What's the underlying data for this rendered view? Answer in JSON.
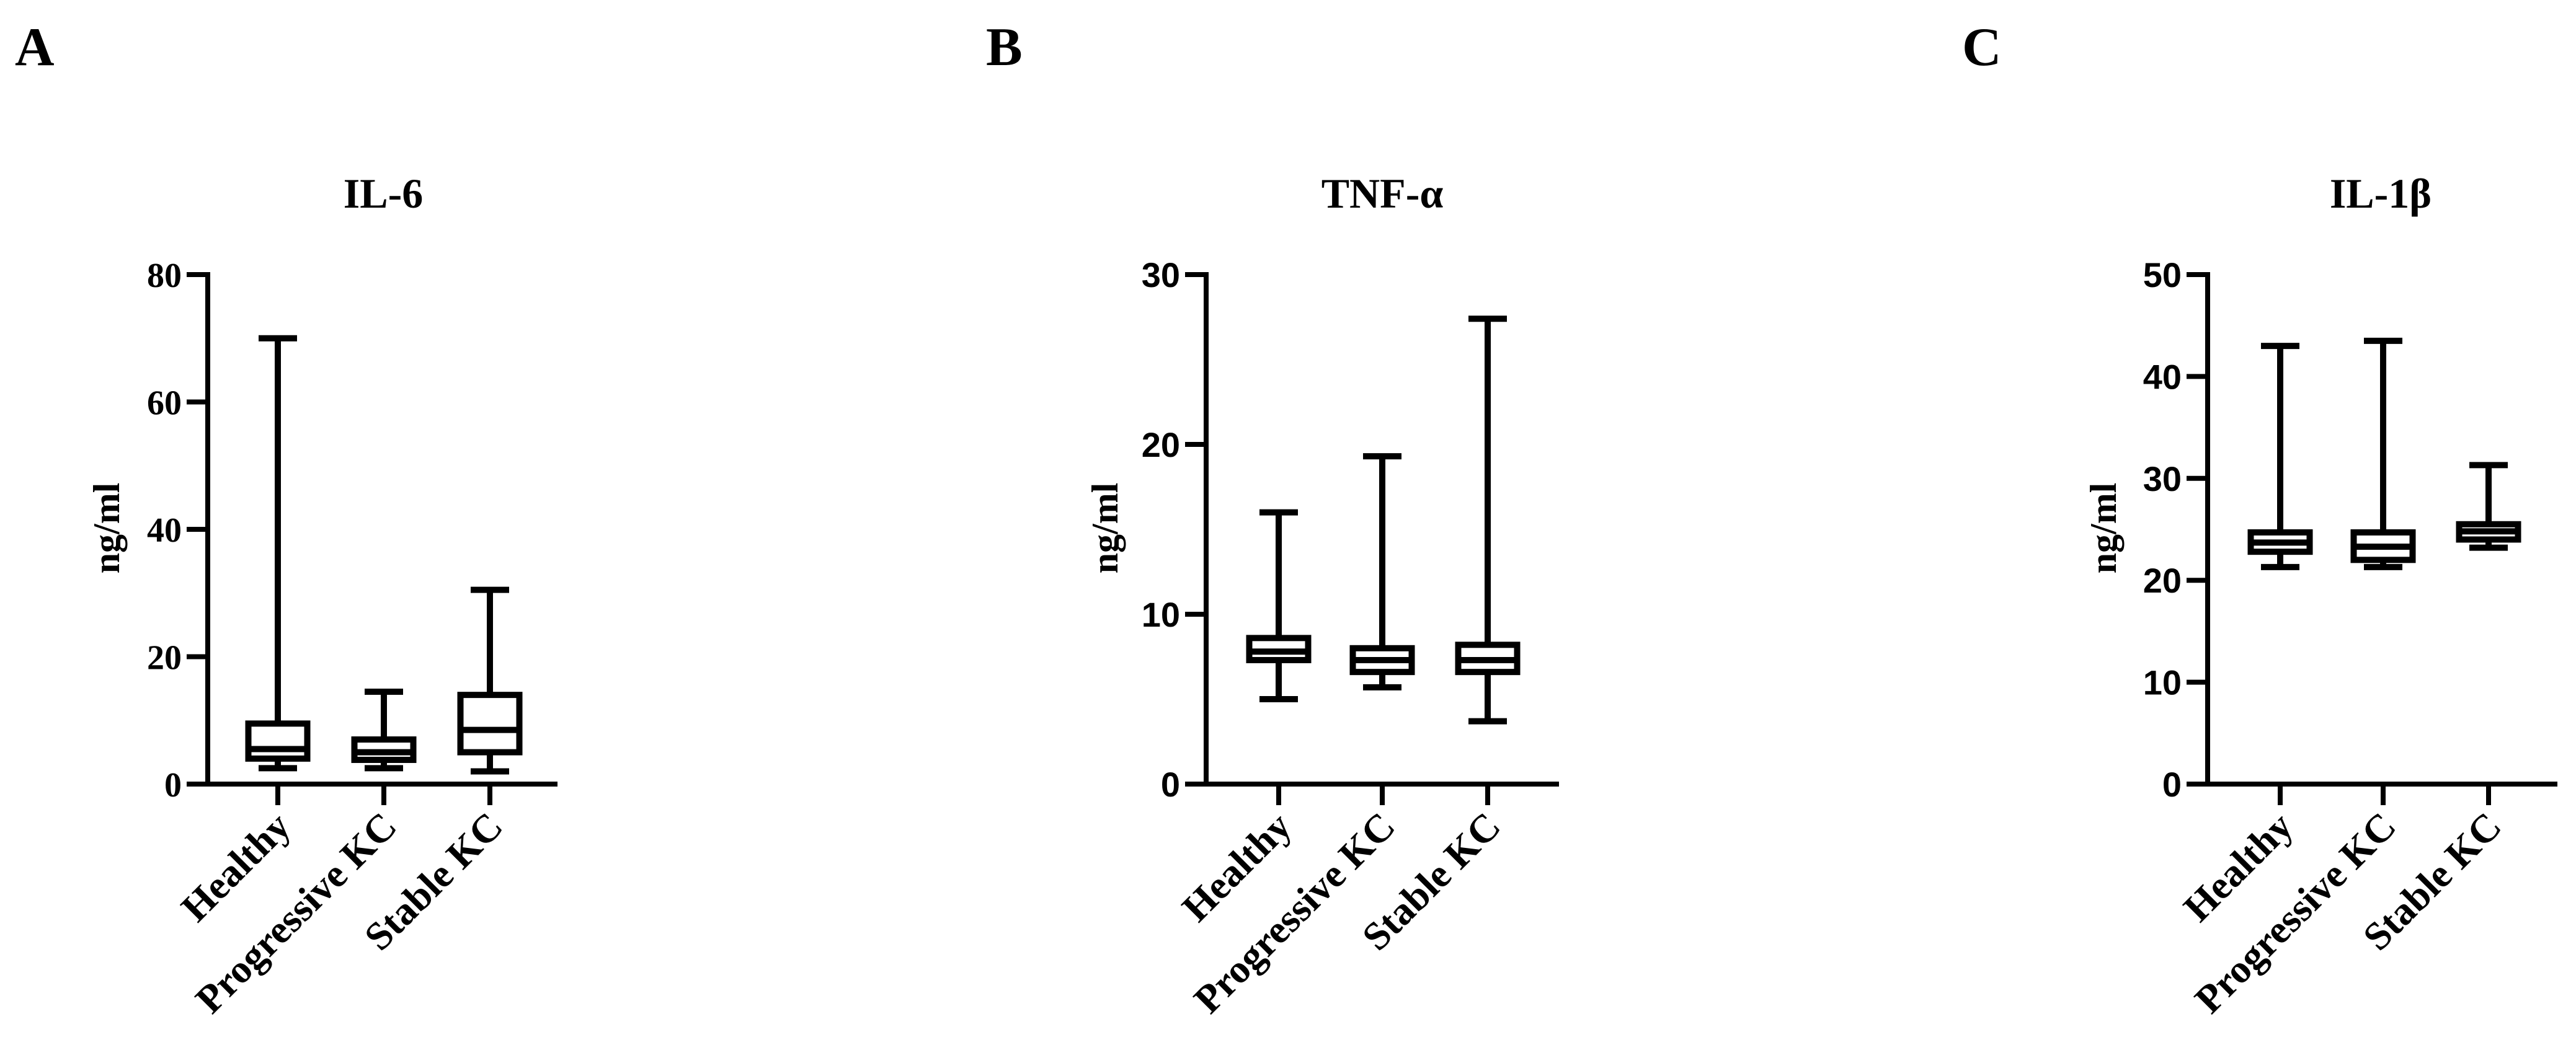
{
  "panels": [
    {
      "letter": "A",
      "chart_data": {
        "type": "box",
        "title": "IL-6",
        "ylabel": "ng/ml",
        "xlabel": "",
        "ylim": [
          0,
          80
        ],
        "yticks": [
          0,
          20,
          40,
          60,
          80
        ],
        "categories": [
          "Healthy",
          "Progressive KC",
          "Stable KC"
        ],
        "boxes": [
          {
            "min": 2.5,
            "q1": 4.0,
            "median": 5.5,
            "q3": 9.5,
            "max": 70.0
          },
          {
            "min": 2.5,
            "q1": 3.8,
            "median": 5.0,
            "q3": 7.0,
            "max": 14.5
          },
          {
            "min": 2.0,
            "q1": 5.0,
            "median": 8.5,
            "q3": 14.0,
            "max": 30.5
          }
        ]
      }
    },
    {
      "letter": "B",
      "chart_data": {
        "type": "box",
        "title": "TNF-α",
        "ylabel": "ng/ml",
        "xlabel": "",
        "ylim": [
          0,
          30
        ],
        "yticks": [
          0,
          10,
          20,
          30
        ],
        "categories": [
          "Healthy",
          "Progressive KC",
          "Stable KC"
        ],
        "boxes": [
          {
            "min": 5.0,
            "q1": 7.3,
            "median": 7.8,
            "q3": 8.6,
            "max": 16.0
          },
          {
            "min": 5.7,
            "q1": 6.6,
            "median": 7.3,
            "q3": 8.0,
            "max": 19.3
          },
          {
            "min": 3.7,
            "q1": 6.6,
            "median": 7.3,
            "q3": 8.2,
            "max": 27.4
          }
        ]
      }
    },
    {
      "letter": "C",
      "chart_data": {
        "type": "box",
        "title": "IL-1β",
        "ylabel": "ng/ml",
        "xlabel": "",
        "ylim": [
          0,
          50
        ],
        "yticks": [
          0,
          10,
          20,
          30,
          40,
          50
        ],
        "categories": [
          "Healthy",
          "Progressive KC",
          "Stable KC"
        ],
        "boxes": [
          {
            "min": 21.3,
            "q1": 22.8,
            "median": 23.7,
            "q3": 24.7,
            "max": 43.0
          },
          {
            "min": 21.3,
            "q1": 22.0,
            "median": 23.3,
            "q3": 24.7,
            "max": 43.5
          },
          {
            "min": 23.2,
            "q1": 24.0,
            "median": 24.8,
            "q3": 25.5,
            "max": 31.3
          }
        ]
      }
    }
  ]
}
